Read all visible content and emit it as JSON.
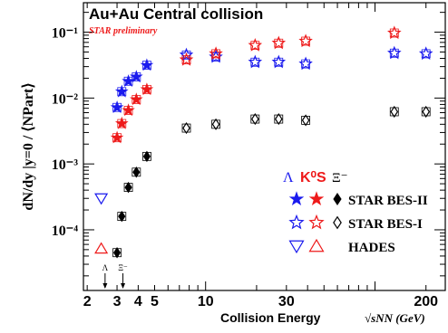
{
  "chart_data": {
    "type": "scatter",
    "title": "Au+Au Central collision",
    "subtitle": "STAR preliminary",
    "xlabel": "Collision Energy",
    "xlabel_unit": "√sNN (GeV)",
    "ylabel": "dN/dy |y=0 / ⟨NPart⟩",
    "x_scale": "log",
    "y_scale": "log",
    "xlim": [
      1.9,
      260
    ],
    "ylim": [
      1.2e-05,
      0.28
    ],
    "x_ticks": [
      "2",
      "3",
      "4",
      "5",
      "10",
      "30",
      "200"
    ],
    "y_ticks": [
      "10⁻⁴",
      "10⁻³",
      "10⁻²",
      "10⁻¹"
    ],
    "grid": false,
    "legend_position": "bottom-right",
    "legend": {
      "species": [
        "Λ",
        "K⁰S",
        "Ξ⁻"
      ],
      "rows": [
        "STAR BES-II",
        "STAR BES-I",
        "HADES"
      ]
    },
    "annotations": [
      "Λ",
      "Ξ⁻"
    ],
    "threshold_arrows_x": [
      2.55,
      3.25
    ],
    "series": [
      {
        "name": "Λ STAR BES-II",
        "color": "#1a1aee",
        "marker": "star-filled",
        "x": [
          3.0,
          3.2,
          3.5,
          3.9,
          4.5
        ],
        "y": [
          0.0072,
          0.0125,
          0.018,
          0.021,
          0.0315
        ]
      },
      {
        "name": "K⁰S STAR BES-II",
        "color": "#ee1a1a",
        "marker": "star-filled",
        "x": [
          3.0,
          3.2,
          3.5,
          3.9,
          4.5
        ],
        "y": [
          0.0025,
          0.0041,
          0.0065,
          0.0095,
          0.0135
        ]
      },
      {
        "name": "Ξ⁻ STAR BES-II",
        "color": "#000000",
        "marker": "diamond-filled",
        "x": [
          3.0,
          3.2,
          3.5,
          3.9,
          4.5
        ],
        "y": [
          4.5e-05,
          0.00016,
          0.00044,
          0.00075,
          0.0013
        ]
      },
      {
        "name": "Λ STAR BES-I",
        "color": "#1a1aee",
        "marker": "star-open",
        "x": [
          7.7,
          11.5,
          19.6,
          27,
          39,
          130,
          200
        ],
        "y": [
          0.045,
          0.042,
          0.035,
          0.035,
          0.033,
          0.048,
          0.047
        ]
      },
      {
        "name": "K⁰S STAR BES-I",
        "color": "#ee1a1a",
        "marker": "star-open",
        "x": [
          7.7,
          11.5,
          19.6,
          27,
          39,
          130
        ],
        "y": [
          0.038,
          0.047,
          0.063,
          0.068,
          0.073,
          0.097
        ]
      },
      {
        "name": "Ξ⁻ STAR BES-I",
        "color": "#000000",
        "marker": "diamond-open",
        "x": [
          7.7,
          11.5,
          19.6,
          27,
          39,
          130,
          200
        ],
        "y": [
          0.0035,
          0.004,
          0.0048,
          0.0048,
          0.0046,
          0.0062,
          0.0062
        ]
      },
      {
        "name": "Λ HADES",
        "color": "#1a1aee",
        "marker": "triangle-down-open",
        "x": [
          2.42
        ],
        "y": [
          0.0003
        ]
      },
      {
        "name": "K⁰S HADES",
        "color": "#ee1a1a",
        "marker": "triangle-up-open",
        "x": [
          2.42
        ],
        "y": [
          5.2e-05
        ]
      }
    ]
  }
}
